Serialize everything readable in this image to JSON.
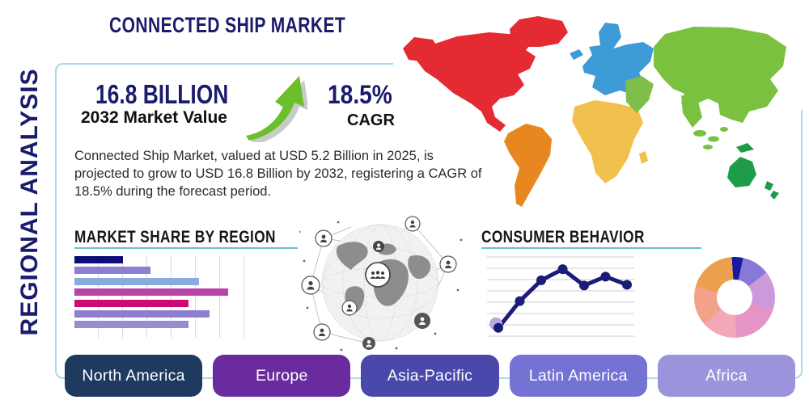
{
  "header": {
    "title": "CONNECTED SHIP MARKET",
    "side_label": "REGIONAL ANALYSIS"
  },
  "stats": {
    "market_value": "16.8 BILLION",
    "market_value_caption": "2032 Market Value",
    "cagr_value": "18.5%",
    "cagr_caption": "CAGR",
    "arrow_icon": "growth-arrow-up-icon",
    "arrow_color": "#6abf2a"
  },
  "description": "Connected Ship Market, valued at USD 5.2 Billion in 2025, is projected to grow to USD 16.8 Billion by 2032, registering a CAGR of 18.5% during the forecast period.",
  "sections": {
    "market_share_title": "MARKET SHARE BY REGION",
    "consumer_behavior_title": "CONSUMER BEHAVIOR"
  },
  "region_buttons": [
    {
      "label": "North America",
      "color": "#1e3a5f"
    },
    {
      "label": "Europe",
      "color": "#6a2b9f"
    },
    {
      "label": "Asia-Pacific",
      "color": "#4a49ab"
    },
    {
      "label": "Latin America",
      "color": "#7473d4"
    },
    {
      "label": "Africa",
      "color": "#9b94dd"
    }
  ],
  "map": {
    "regions": {
      "north_america": "#e42a33",
      "south_america": "#e8861f",
      "europe": "#3d9bd8",
      "africa": "#f2c04c",
      "asia": "#79c13f",
      "middle_east": "#7fbf49",
      "oceania": "#1f9c49"
    }
  },
  "theme": {
    "navy_text": "#1b1b6e",
    "heading_black": "#161616",
    "section_underline": "#68c2cf",
    "frame_border": "#a9d9ea"
  },
  "chart_data": [
    {
      "type": "bar",
      "orientation": "horizontal",
      "title": "MARKET SHARE BY REGION",
      "values": [
        28,
        44,
        72,
        89,
        66,
        78,
        66
      ],
      "xlim": [
        0,
        100
      ],
      "grid": "vertical",
      "colors": [
        "#0d0d77",
        "#8d7ed1",
        "#8aabdf",
        "#b944a8",
        "#cb0a74",
        "#8d7ed1",
        "#9a8bd3"
      ]
    },
    {
      "type": "line",
      "title": "CONSUMER BEHAVIOR",
      "x": [
        1,
        2,
        3,
        4,
        5,
        6,
        7
      ],
      "values": [
        10,
        46,
        74,
        89,
        67,
        79,
        68
      ],
      "ylim": [
        0,
        100
      ],
      "grid": "horizontal",
      "line_color": "#1b1b78",
      "point_color": "#1b1b78",
      "first_point_halo_color": "#b9a7de"
    },
    {
      "type": "pie",
      "donut": true,
      "start_angle_deg": -4,
      "values": [
        4.5,
        11,
        15.5,
        19.5,
        14,
        16,
        19.5
      ],
      "colors": [
        "#1a17a0",
        "#8878d8",
        "#cc99dd",
        "#e594c6",
        "#f3a8b8",
        "#f3a188",
        "#eba04f"
      ]
    }
  ]
}
